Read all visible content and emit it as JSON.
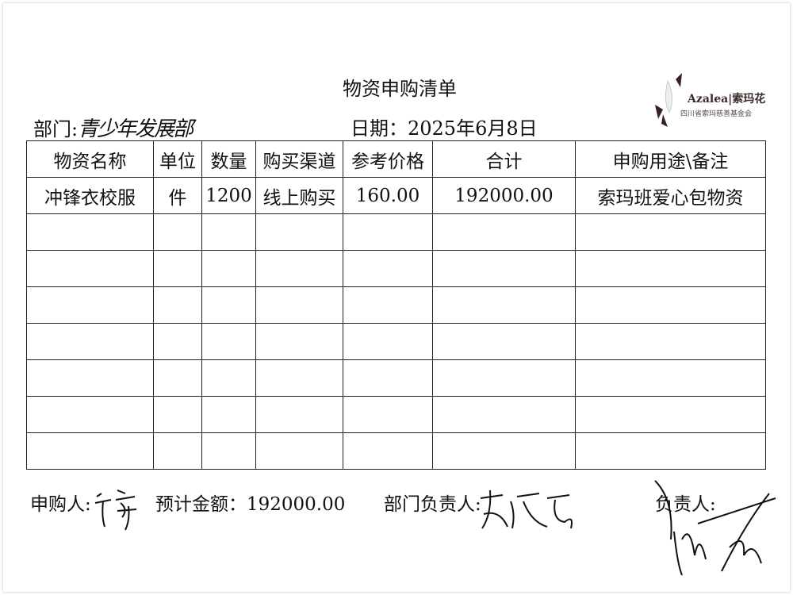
{
  "title": "物资申购清单",
  "department": {
    "label": "部门:",
    "value": "青少年发展部"
  },
  "date": {
    "label": "日期：",
    "value": "2025年6月8日"
  },
  "logo": {
    "brand": "Azalea|索玛花",
    "org": "四川省索玛慈善基金会"
  },
  "table": {
    "headers": [
      "物资名称",
      "单位",
      "数量",
      "购买渠道",
      "参考价格",
      "合计",
      "申购用途\\备注"
    ],
    "rows": [
      [
        "冲锋衣校服",
        "件",
        "1200",
        "线上购买",
        "160.00",
        "192000.00",
        "索玛班爱心包物资"
      ],
      [
        "",
        "",
        "",
        "",
        "",
        "",
        ""
      ],
      [
        "",
        "",
        "",
        "",
        "",
        "",
        ""
      ],
      [
        "",
        "",
        "",
        "",
        "",
        "",
        ""
      ],
      [
        "",
        "",
        "",
        "",
        "",
        "",
        ""
      ],
      [
        "",
        "",
        "",
        "",
        "",
        "",
        ""
      ],
      [
        "",
        "",
        "",
        "",
        "",
        "",
        ""
      ],
      [
        "",
        "",
        "",
        "",
        "",
        "",
        ""
      ]
    ]
  },
  "footer": {
    "applicant_label": "申购人:",
    "estimate_label": "预计金额：",
    "estimate_value": "192000.00",
    "dept_head_label": "部门负责人:",
    "head_label": "负责人:"
  }
}
